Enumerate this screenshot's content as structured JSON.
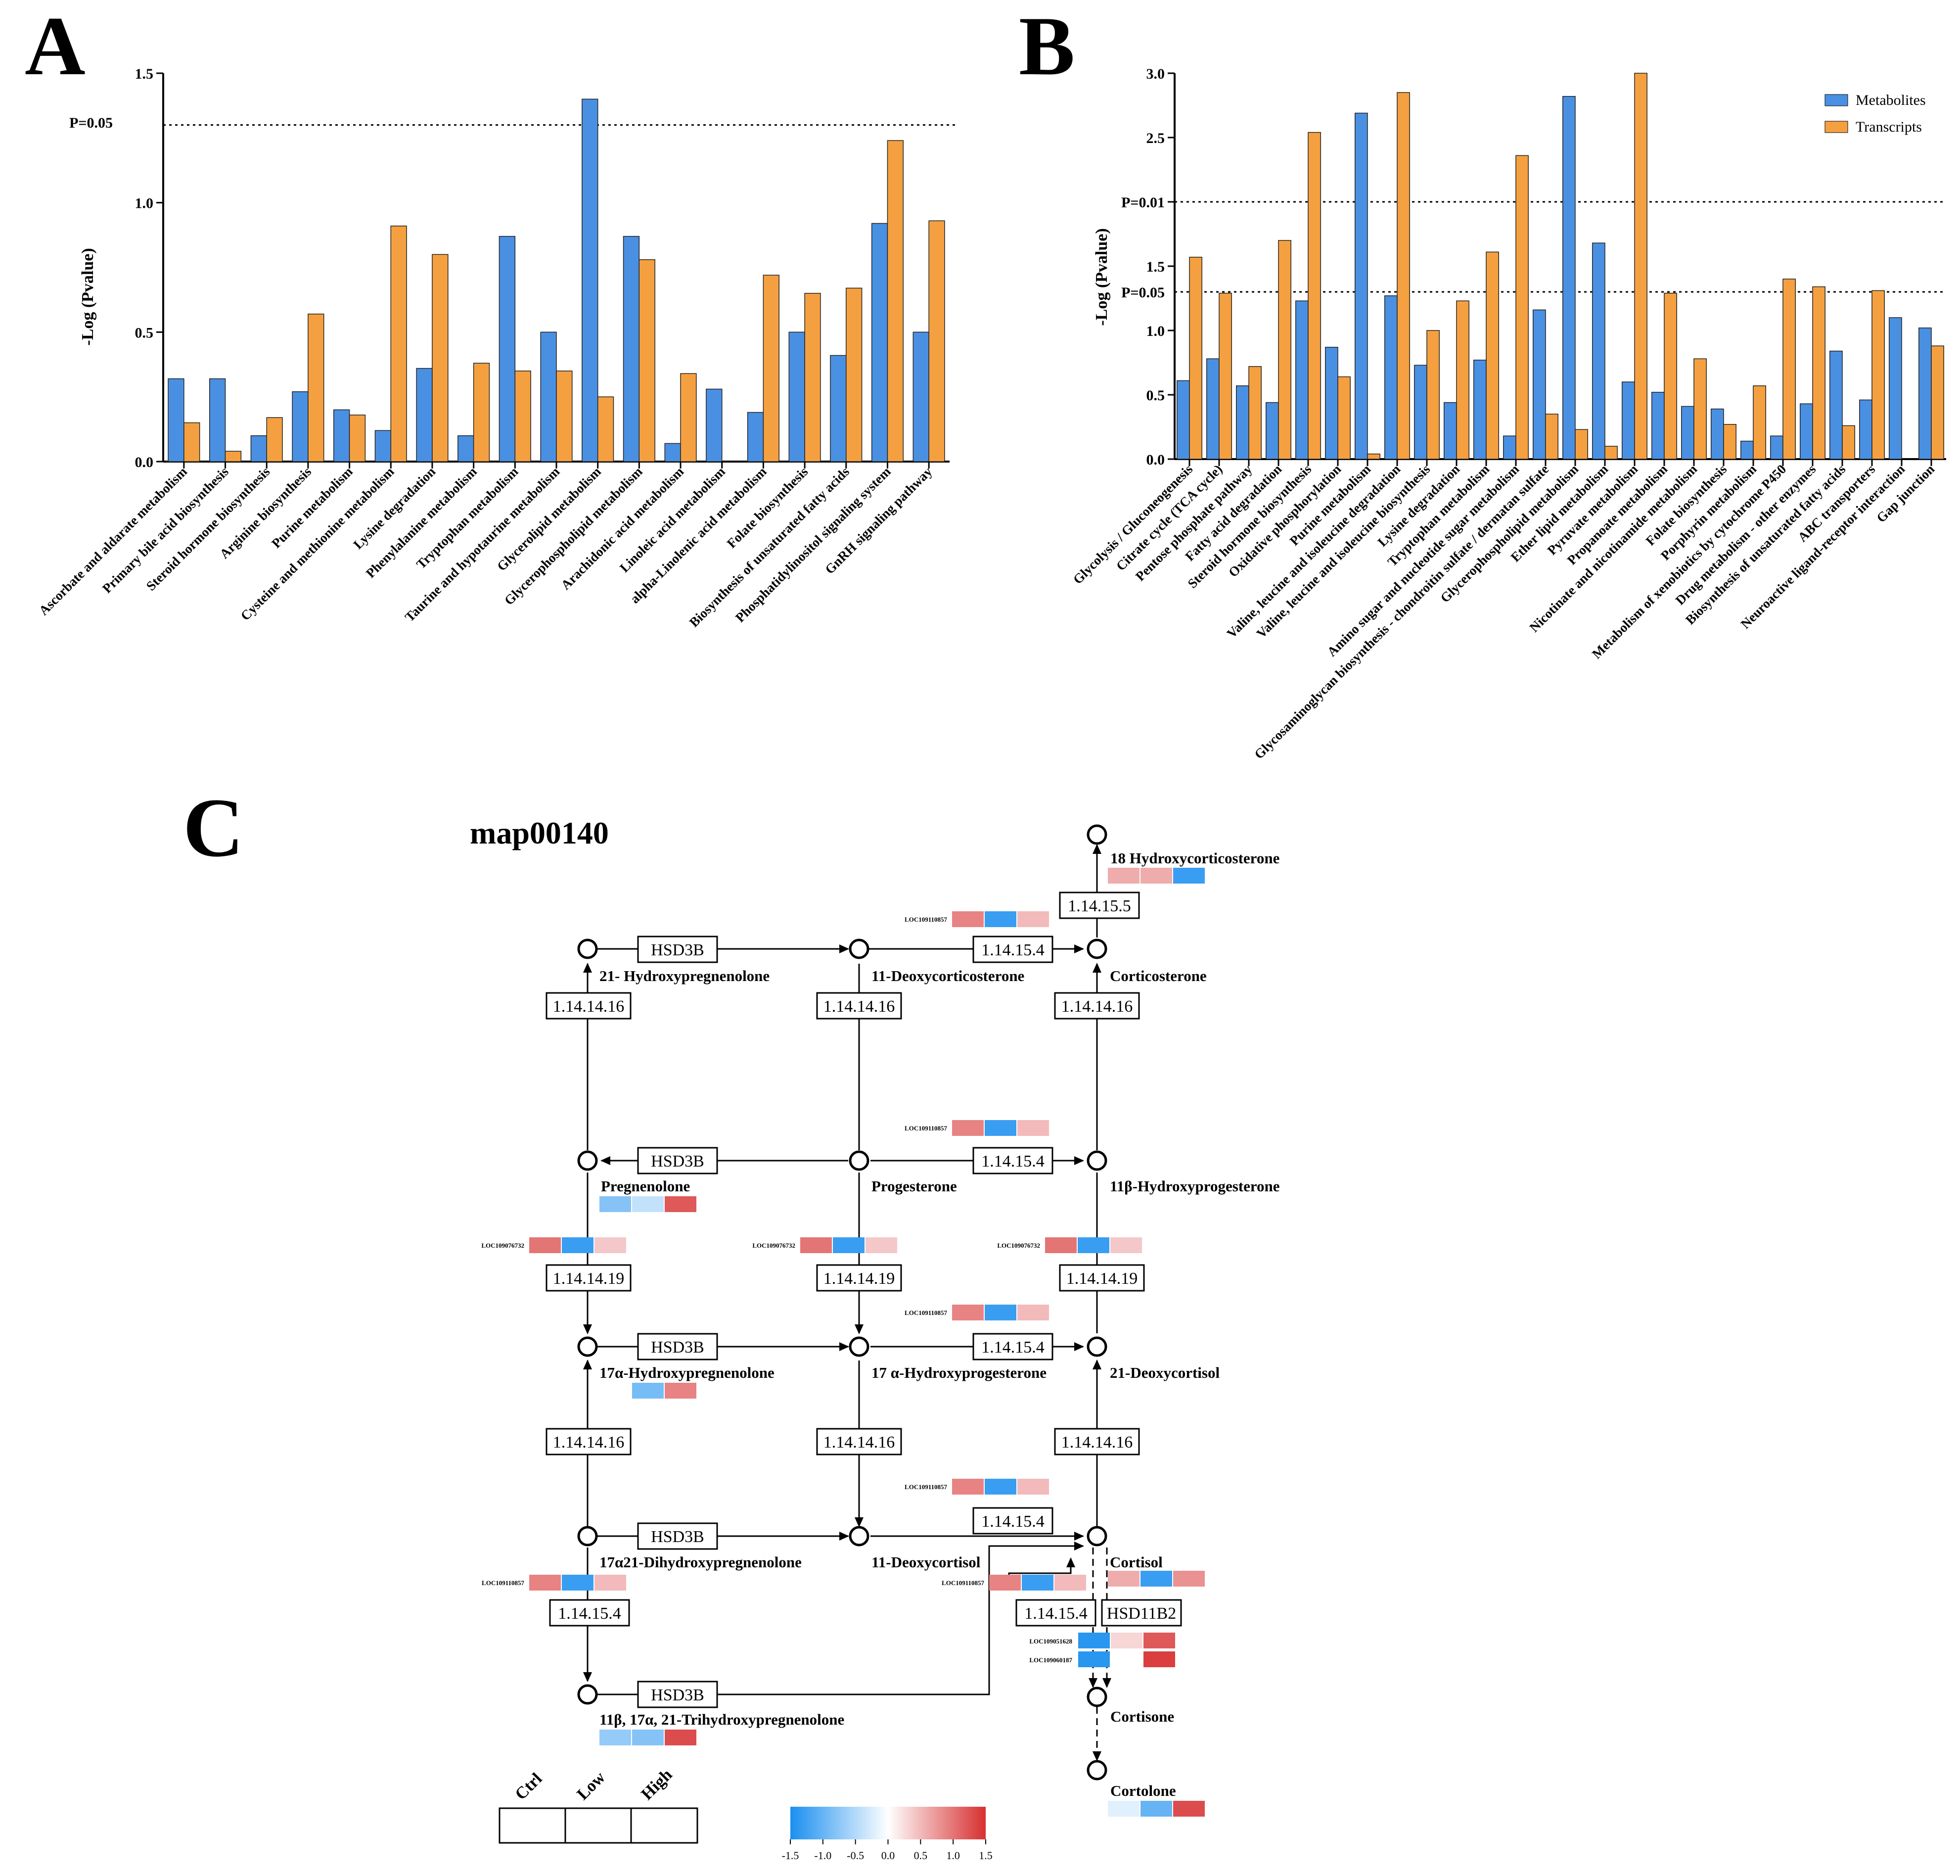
{
  "panels": {
    "a": "A",
    "b": "B",
    "c": "C"
  },
  "colors": {
    "metabolites": "#4a90e2",
    "transcripts": "#f5a040",
    "heat_low": "#1a8fef",
    "heat_mid": "#ffffff",
    "heat_high": "#d73030"
  },
  "chart_data": [
    {
      "id": "A",
      "type": "bar",
      "ylabel": "-Log (Pvalue)",
      "ylim": [
        0,
        1.5
      ],
      "yticks": [
        "0.0",
        "0.5",
        "1.0",
        "1.5"
      ],
      "reference_lines": [
        {
          "value": 1.3,
          "label": "P=0.05"
        }
      ],
      "categories": [
        "Ascorbate and aldarate metabolism",
        "Primary bile acid biosynthesis",
        "Steroid hormone biosynthesis",
        "Arginine biosynthesis",
        "Purine metabolism",
        "Cysteine and methionine metabolism",
        "Lysine degradation",
        "Phenylalanine metabolism",
        "Tryptophan metabolism",
        "Taurine and hypotaurine metabolism",
        "Glycerolipid metabolism",
        "Glycerophospholipid metabolism",
        "Arachidonic acid metabolism",
        "Linoleic acid metabolism",
        "alpha-Linolenic acid metabolism",
        "Folate biosynthesis",
        "Biosynthesis of unsaturated fatty acids",
        "Phosphatidylinositol signaling system",
        "GnRH signaling pathway"
      ],
      "series": [
        {
          "name": "Metabolites",
          "values": [
            0.32,
            0.32,
            0.1,
            0.27,
            0.2,
            0.12,
            0.36,
            0.1,
            0.87,
            0.5,
            1.4,
            0.87,
            0.07,
            0.28,
            0.19,
            0.5,
            0.41,
            0.92,
            0.5
          ]
        },
        {
          "name": "Transcripts",
          "values": [
            0.15,
            0.04,
            0.17,
            0.57,
            0.18,
            0.91,
            0.8,
            0.38,
            0.35,
            0.35,
            0.25,
            0.78,
            0.34,
            0,
            0.72,
            0.65,
            0.67,
            1.24,
            0.93
          ]
        }
      ]
    },
    {
      "id": "B",
      "type": "bar",
      "ylabel": "-Log (Pvalue)",
      "ylim": [
        0,
        3.0
      ],
      "yticks": [
        "0.0",
        "0.5",
        "1.0",
        "1.5",
        "2.0",
        "2.5",
        "3.0"
      ],
      "ytick_overlay": [
        {
          "value": 2.0,
          "label": "P=0.01"
        },
        {
          "value": 1.3,
          "label": "P=0.05"
        }
      ],
      "reference_lines": [
        {
          "value": 2.0,
          "label": "P=0.01"
        },
        {
          "value": 1.3,
          "label": "P=0.05"
        }
      ],
      "legend": [
        "Metabolites",
        "Transcripts"
      ],
      "categories": [
        "Glycolysis / Gluconeogenesis",
        "Citrate cycle (TCA cycle)",
        "Pentose phosphate pathway",
        "Fatty acid degradation",
        "Steroid hormone biosynthesis",
        "Oxidative phosphorylation",
        "Purine metabolism",
        "Valine, leucine and isoleucine degradation",
        "Valine, leucine and isoleucine biosynthesis",
        "Lysine degradation",
        "Tryptophan metabolism",
        "Amino sugar and nucleotide sugar metabolism",
        "Glycosaminoglycan biosynthesis - chondroitin sulfate / dermatan sulfate",
        "Glycerophospholipid metabolism",
        "Ether lipid metabolism",
        "Pyruvate metabolism",
        "Propanoate metabolism",
        "Nicotinate and nicotinamide metabolism",
        "Folate biosynthesis",
        "Porphyrin metabolism",
        "Metabolism of xenobiotics by cytochrome P450",
        "Drug metabolism - other enzymes",
        "Biosynthesis of unsaturated fatty acids",
        "ABC transporters",
        "Neuroactive ligand-receptor interaction",
        "Gap junction"
      ],
      "series": [
        {
          "name": "Metabolites",
          "values": [
            0.61,
            0.78,
            0.57,
            0.44,
            1.23,
            0.87,
            2.69,
            1.27,
            0.73,
            0.44,
            0.77,
            0.18,
            1.16,
            2.82,
            1.68,
            0.6,
            0.52,
            0.41,
            0.39,
            0.14,
            0.18,
            0.43,
            0.84,
            0.46,
            1.1,
            1.02
          ]
        },
        {
          "name": "Transcripts",
          "values": [
            1.57,
            1.29,
            0.72,
            1.7,
            2.54,
            0.64,
            0.04,
            2.85,
            1.0,
            1.23,
            1.61,
            2.36,
            0.35,
            0.23,
            0.1,
            3.0,
            1.29,
            0.78,
            0.27,
            0.57,
            1.4,
            1.34,
            0.26,
            1.31,
            0,
            0.88
          ]
        }
      ]
    }
  ],
  "pathway": {
    "title": "map00140",
    "nodes": {
      "hydroxycorticosterone18": "18 Hydroxycorticosterone",
      "hydroxypregnenolone21": "21- Hydroxypregnenolone",
      "deoxycorticosterone11": "11-Deoxycorticosterone",
      "corticosterone": "Corticosterone",
      "pregnenolone": "Pregnenolone",
      "progesterone": "Progesterone",
      "hydroxyprogesterone11b": "11β-Hydroxyprogesterone",
      "hydroxypregnenolone17a": "17α-Hydroxypregnenolone",
      "hydroxyprogesterone17a": "17 α-Hydroxyprogesterone",
      "deoxycortisol21": "21-Deoxycortisol",
      "dihydroxypregnenolone": "17α21-Dihydroxypregnenolone",
      "deoxycortisol11": "11-Deoxycortisol",
      "cortisol": "Cortisol",
      "trihydroxypregnenolone": "11β, 17α, 21-Trihydroxypregnenolone",
      "cortisone": "Cortisone",
      "cortolone": "Cortolone"
    },
    "enzymes": {
      "hsd3b": "HSD3B",
      "e1414161": "1.14.14.16",
      "e1414519": "1.14.14.19",
      "e114154": "1.14.15.4",
      "e114155": "1.14.15.5",
      "hsd11b2": "HSD11B2"
    },
    "genes": {
      "loc109110857": "LOC109110857",
      "loc109076732": "LOC109076732",
      "loc109051628": "LOC109051628",
      "loc109060187": "LOC109060187"
    },
    "heat_values": {
      "hydroxycorticosterone18": [
        0.6,
        0.6,
        -1.3
      ],
      "loc109110857": [
        0.9,
        -1.3,
        0.5
      ],
      "loc109076732": [
        1.0,
        -1.3,
        0.4
      ],
      "pregnenolone": [
        -0.8,
        -0.4,
        1.2
      ],
      "hydroxypregnenolone17a": [
        0.0,
        -0.9,
        0.9
      ],
      "trihydroxypregnenolone": [
        -0.7,
        -0.8,
        1.3
      ],
      "cortisol": [
        0.6,
        -1.3,
        0.8
      ],
      "loc109051628": [
        -1.4,
        0.3,
        1.2
      ],
      "loc109060187": [
        -1.4,
        0.0,
        1.4
      ],
      "cortolone": [
        -0.2,
        -1.0,
        1.3
      ]
    },
    "heat_header": [
      "Ctrl",
      "Low",
      "High"
    ],
    "colorbar_ticks": [
      "-1.5",
      "-1.0",
      "-0.5",
      "0.0",
      "0.5",
      "1.0",
      "1.5"
    ]
  }
}
